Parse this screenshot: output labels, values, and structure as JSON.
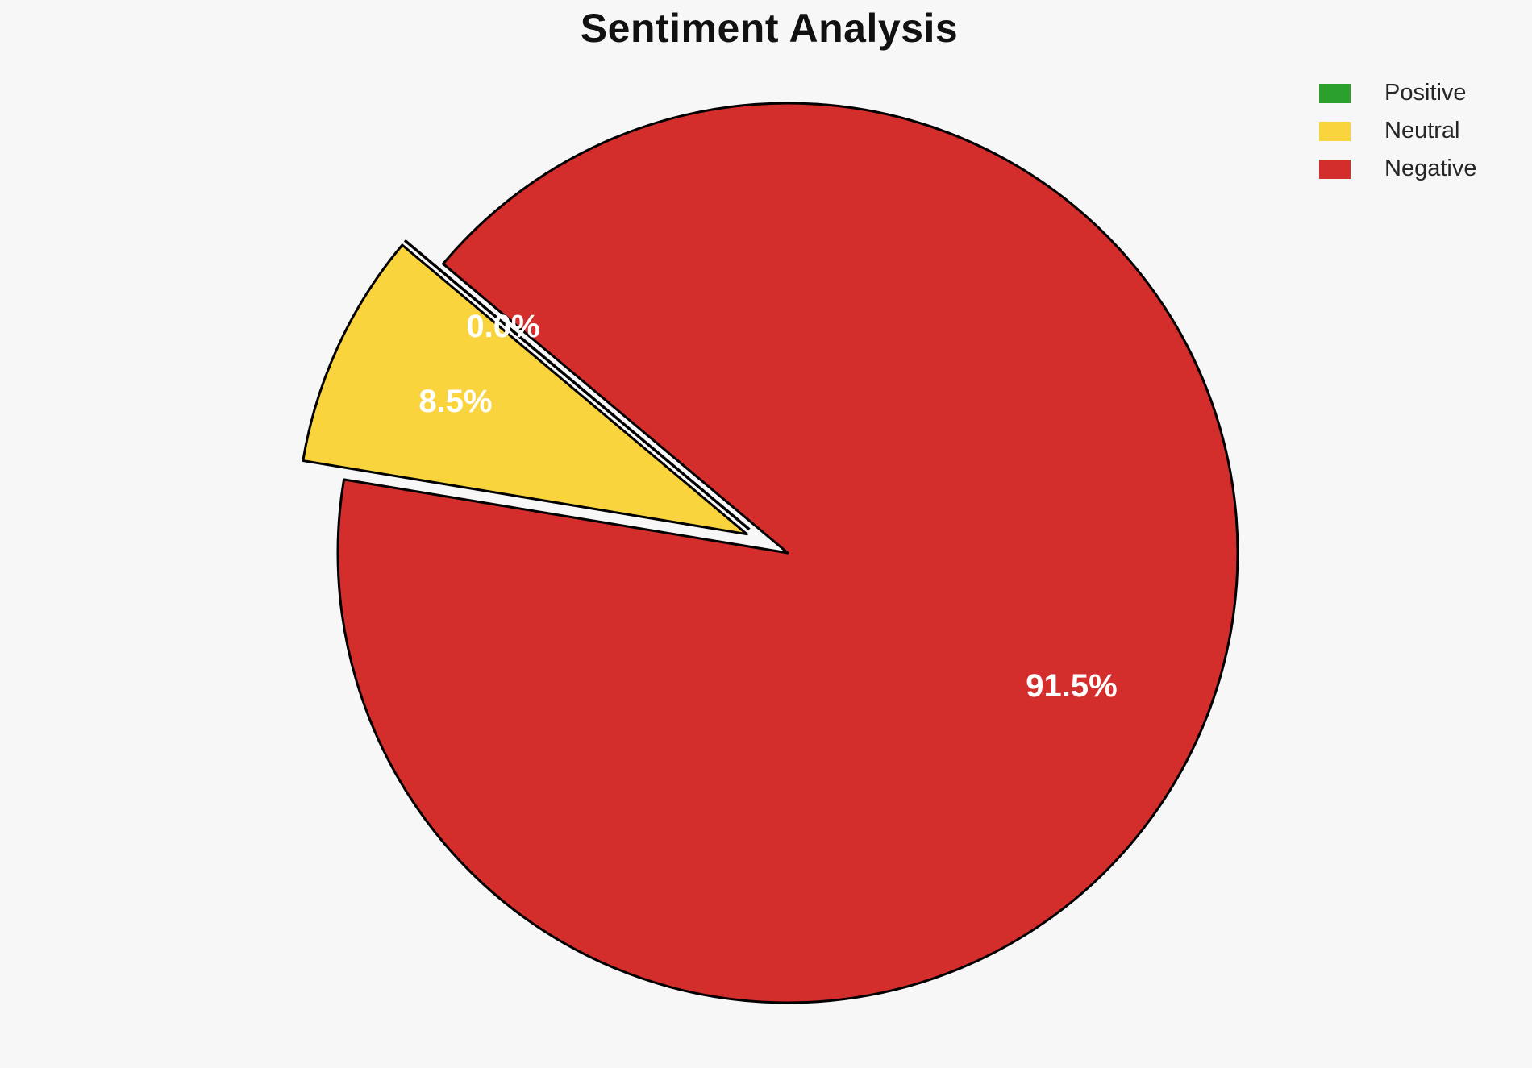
{
  "chart_data": {
    "type": "pie",
    "title": "Sentiment Analysis",
    "categories": [
      "Positive",
      "Neutral",
      "Negative"
    ],
    "values": [
      0.0,
      8.5,
      91.5
    ],
    "slices": [
      {
        "label": "Positive",
        "value": 0.0,
        "pct_label": "0.0%",
        "color": "#2ca02c"
      },
      {
        "label": "Neutral",
        "value": 8.5,
        "pct_label": "8.5%",
        "color": "#fad43d"
      },
      {
        "label": "Negative",
        "value": 91.5,
        "pct_label": "91.5%",
        "color": "#d32d2c"
      }
    ],
    "edge_color": "#000000",
    "background_color": "#f7f7f7",
    "title_color": "#111111",
    "legend_text_color": "#262626",
    "pct_text_color": "#ffffff",
    "legend_position": "upper-right",
    "start_angle": 140,
    "counterclockwise": true,
    "explode": [
      0.1,
      0.1,
      0
    ]
  }
}
